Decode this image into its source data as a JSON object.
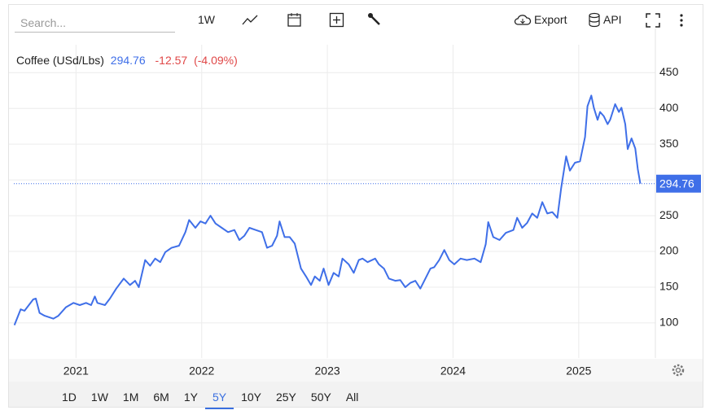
{
  "toolbar": {
    "search_placeholder": "Search...",
    "interval": "1W",
    "export": "Export",
    "api": "API"
  },
  "range_buttons": {
    "options": [
      "1D",
      "1W",
      "1M",
      "6M",
      "1Y",
      "5Y",
      "10Y",
      "25Y",
      "50Y",
      "All"
    ],
    "selected_index": 5
  },
  "chart_data": {
    "type": "line",
    "change": -12.57,
    "change_percent_label": "(-4.09%)",
    "x": [
      2020.51,
      2020.56,
      2020.59,
      2020.66,
      2020.68,
      2020.71,
      2020.75,
      2020.82,
      2020.86,
      2020.92,
      2020.98,
      2021.03,
      2021.08,
      2021.12,
      2021.15,
      2021.17,
      2021.23,
      2021.27,
      2021.32,
      2021.38,
      2021.43,
      2021.47,
      2021.5,
      2021.55,
      2021.59,
      2021.63,
      2021.67,
      2021.71,
      2021.76,
      2021.82,
      2021.87,
      2021.9,
      2021.95,
      2021.99,
      2022.03,
      2022.07,
      2022.11,
      2022.16,
      2022.21,
      2022.26,
      2022.3,
      2022.34,
      2022.38,
      2022.43,
      2022.48,
      2022.52,
      2022.56,
      2022.6,
      2022.62,
      2022.66,
      2022.7,
      2022.74,
      2022.79,
      2022.83,
      2022.87,
      2022.9,
      2022.94,
      2022.97,
      2023.01,
      2023.05,
      2023.09,
      2023.12,
      2023.17,
      2023.21,
      2023.25,
      2023.28,
      2023.32,
      2023.38,
      2023.41,
      2023.45,
      2023.49,
      2023.54,
      2023.58,
      2023.62,
      2023.66,
      2023.7,
      2023.74,
      2023.78,
      2023.82,
      2023.85,
      2023.89,
      2023.93,
      2023.97,
      2024.01,
      2024.06,
      2024.11,
      2024.17,
      2024.22,
      2024.26,
      2024.28,
      2024.32,
      2024.37,
      2024.42,
      2024.48,
      2024.51,
      2024.55,
      2024.59,
      2024.63,
      2024.67,
      2024.71,
      2024.75,
      2024.79,
      2024.83,
      2024.86,
      2024.9,
      2024.93,
      2024.97,
      2025.01,
      2025.05,
      2025.07,
      2025.1,
      2025.12,
      2025.15,
      2025.17,
      2025.2,
      2025.23,
      2025.25,
      2025.29,
      2025.32,
      2025.34,
      2025.37,
      2025.39,
      2025.42,
      2025.45,
      2025.47,
      2025.49
    ],
    "series": [
      {
        "name": "Coffee (USd/Lbs)",
        "color": "#3f6fe8",
        "values": [
          97,
          119,
          117,
          133,
          134,
          114,
          110,
          106,
          110,
          122,
          128,
          125,
          128,
          125,
          137,
          128,
          125,
          134,
          148,
          162,
          153,
          159,
          150,
          188,
          180,
          190,
          185,
          199,
          205,
          208,
          227,
          244,
          233,
          242,
          239,
          250,
          239,
          233,
          227,
          230,
          216,
          222,
          233,
          230,
          227,
          205,
          208,
          222,
          242,
          220,
          220,
          211,
          176,
          165,
          153,
          165,
          159,
          176,
          153,
          170,
          165,
          190,
          182,
          170,
          188,
          190,
          185,
          190,
          182,
          176,
          162,
          159,
          160,
          150,
          156,
          159,
          148,
          162,
          176,
          178,
          188,
          202,
          188,
          182,
          190,
          188,
          190,
          185,
          210,
          241,
          220,
          216,
          226,
          230,
          247,
          233,
          240,
          253,
          247,
          269,
          253,
          255,
          247,
          288,
          333,
          313,
          324,
          326,
          360,
          403,
          418,
          401,
          384,
          395,
          389,
          378,
          384,
          406,
          395,
          401,
          378,
          343,
          358,
          344,
          315,
          294.76
        ]
      }
    ],
    "xlim": [
      2020.46,
      2025.61
    ],
    "xticks": [
      2021,
      2022,
      2023,
      2024,
      2025
    ],
    "ylim": [
      51,
      489
    ],
    "yticks": [
      100,
      150,
      200,
      250,
      300,
      350,
      400,
      450
    ],
    "grid": true
  }
}
